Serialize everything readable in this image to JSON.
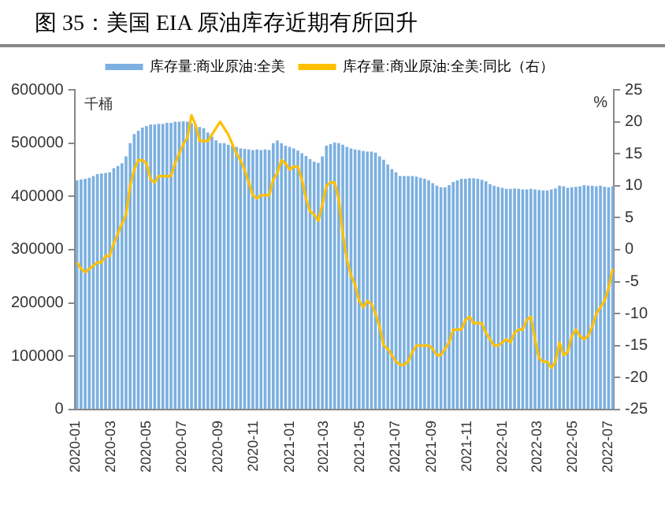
{
  "chart_data": {
    "type": "bar",
    "title": "图 35：美国 EIA 原油库存近期有所回升",
    "ylabel": "千桶",
    "y2label": "%",
    "x": [
      "2020-01-03",
      "2020-01-10",
      "2020-01-17",
      "2020-01-24",
      "2020-01-31",
      "2020-02-07",
      "2020-02-14",
      "2020-02-21",
      "2020-02-28",
      "2020-03-06",
      "2020-03-13",
      "2020-03-20",
      "2020-03-27",
      "2020-04-03",
      "2020-04-10",
      "2020-04-17",
      "2020-04-24",
      "2020-05-01",
      "2020-05-08",
      "2020-05-15",
      "2020-05-22",
      "2020-05-29",
      "2020-06-05",
      "2020-06-12",
      "2020-06-19",
      "2020-06-26",
      "2020-07-03",
      "2020-07-10",
      "2020-07-17",
      "2020-07-24",
      "2020-07-31",
      "2020-08-07",
      "2020-08-14",
      "2020-08-21",
      "2020-08-28",
      "2020-09-04",
      "2020-09-11",
      "2020-09-18",
      "2020-09-25",
      "2020-10-02",
      "2020-10-09",
      "2020-10-16",
      "2020-10-23",
      "2020-10-30",
      "2020-11-06",
      "2020-11-13",
      "2020-11-20",
      "2020-11-27",
      "2020-12-04",
      "2020-12-11",
      "2020-12-18",
      "2020-12-25",
      "2021-01-01",
      "2021-01-08",
      "2021-01-15",
      "2021-01-22",
      "2021-01-29",
      "2021-02-05",
      "2021-02-12",
      "2021-02-19",
      "2021-02-26",
      "2021-03-05",
      "2021-03-12",
      "2021-03-19",
      "2021-03-26",
      "2021-04-02",
      "2021-04-09",
      "2021-04-16",
      "2021-04-23",
      "2021-04-30",
      "2021-05-07",
      "2021-05-14",
      "2021-05-21",
      "2021-05-28",
      "2021-06-04",
      "2021-06-11",
      "2021-06-18",
      "2021-06-25",
      "2021-07-02",
      "2021-07-09",
      "2021-07-16",
      "2021-07-23",
      "2021-07-30",
      "2021-08-06",
      "2021-08-13",
      "2021-08-20",
      "2021-08-27",
      "2021-09-03",
      "2021-09-10",
      "2021-09-17",
      "2021-09-24",
      "2021-10-01",
      "2021-10-08",
      "2021-10-15",
      "2021-10-22",
      "2021-10-29",
      "2021-11-05",
      "2021-11-12",
      "2021-11-19",
      "2021-11-26",
      "2021-12-03",
      "2021-12-10",
      "2021-12-17",
      "2021-12-24",
      "2021-12-31",
      "2022-01-07",
      "2022-01-14",
      "2022-01-21",
      "2022-01-28",
      "2022-02-04",
      "2022-02-11",
      "2022-02-18",
      "2022-02-25",
      "2022-03-04",
      "2022-03-11",
      "2022-03-18",
      "2022-03-25",
      "2022-04-01",
      "2022-04-08",
      "2022-04-15",
      "2022-04-22",
      "2022-04-29",
      "2022-05-06",
      "2022-05-13",
      "2022-05-20",
      "2022-05-27",
      "2022-06-03",
      "2022-06-10",
      "2022-06-17",
      "2022-06-24",
      "2022-07-01",
      "2022-07-08"
    ],
    "series": [
      {
        "name": "库存量:商业原油:全美",
        "color": "#7cb0e0",
        "values": [
          430000,
          432000,
          433000,
          435000,
          438000,
          442000,
          443000,
          444000,
          445000,
          453000,
          457000,
          462000,
          475000,
          500000,
          517000,
          523000,
          529000,
          532000,
          535000,
          535000,
          536000,
          536000,
          538000,
          538000,
          540000,
          540000,
          541000,
          540000,
          537000,
          534000,
          530000,
          528000,
          520000,
          512000,
          505000,
          500000,
          500000,
          497000,
          495000,
          493000,
          490000,
          489000,
          488000,
          487000,
          488000,
          487000,
          488000,
          487000,
          500000,
          505000,
          500000,
          495000,
          493000,
          490000,
          486000,
          481000,
          476000,
          470000,
          465000,
          463000,
          475000,
          495000,
          498000,
          501000,
          500000,
          497000,
          493000,
          490000,
          488000,
          487000,
          485000,
          484000,
          484000,
          482000,
          475000,
          469000,
          460000,
          451000,
          445000,
          438000,
          438000,
          438000,
          438000,
          437000,
          435000,
          433000,
          430000,
          425000,
          420000,
          417000,
          417000,
          421000,
          427000,
          430000,
          433000,
          433000,
          434000,
          434000,
          433000,
          431000,
          428000,
          423000,
          420000,
          418000,
          416000,
          414000,
          414000,
          415000,
          414000,
          413000,
          413000,
          414000,
          413000,
          412000,
          411000,
          411000,
          413000,
          415000,
          420000,
          419000,
          416000,
          417000,
          418000,
          419000,
          421000,
          420000,
          420000,
          419000,
          420000,
          418000,
          417000,
          419000
        ]
      },
      {
        "name": "库存量:商业原油:全美:同比（右）",
        "type": "line",
        "axis": "y2",
        "color": "#ffc000",
        "values": [
          -2,
          -3,
          -3.5,
          -3,
          -2.5,
          -2,
          -2,
          -1,
          -1,
          1,
          2.5,
          4,
          5.5,
          10,
          12.5,
          14,
          14,
          13.5,
          11,
          10.5,
          11.5,
          11.5,
          11.5,
          11.5,
          13.5,
          15,
          16.5,
          17.5,
          21,
          19.5,
          17,
          17,
          17,
          18,
          19,
          20,
          19,
          18,
          16.5,
          15,
          14,
          12.5,
          10.5,
          8.5,
          8,
          8.5,
          8.5,
          8.5,
          11,
          12,
          14,
          13.5,
          12.5,
          13,
          13,
          11,
          8,
          6,
          5.5,
          4.5,
          7,
          10,
          10.5,
          10.5,
          8,
          2.5,
          -1.5,
          -4,
          -5.5,
          -8,
          -9,
          -8,
          -8.5,
          -10,
          -12,
          -15,
          -15.5,
          -16.5,
          -17.5,
          -18,
          -18,
          -17.5,
          -16,
          -15,
          -15,
          -15,
          -15,
          -15.5,
          -16.5,
          -16.5,
          -15.5,
          -14.5,
          -12.5,
          -12.5,
          -12.5,
          -11,
          -10.5,
          -11.5,
          -11.5,
          -11.5,
          -13,
          -14,
          -15,
          -15,
          -14.5,
          -14,
          -14.5,
          -13,
          -12.5,
          -12.5,
          -11,
          -10.5,
          -14,
          -17,
          -17.5,
          -17.5,
          -18.5,
          -17.5,
          -14.5,
          -16.5,
          -16,
          -13.5,
          -12.5,
          -13.5,
          -14,
          -13.5,
          -12,
          -10,
          -9,
          -8,
          -6,
          -3
        ]
      }
    ],
    "xlim": [
      "2019-12-30",
      "2022-07-10"
    ],
    "xticks": [
      "2020-01",
      "2020-03",
      "2020-05",
      "2020-07",
      "2020-09",
      "2020-11",
      "2021-01",
      "2021-03",
      "2021-05",
      "2021-07",
      "2021-09",
      "2021-11",
      "2022-01",
      "2022-03",
      "2022-05",
      "2022-07"
    ],
    "ylim": [
      0,
      600000
    ],
    "yticks": [
      0,
      100000,
      200000,
      300000,
      400000,
      500000,
      600000
    ],
    "y2lim": [
      -25,
      25
    ],
    "y2ticks": [
      -25,
      -20,
      -15,
      -10,
      -5,
      0,
      5,
      10,
      15,
      20,
      25
    ],
    "legend": "top"
  }
}
